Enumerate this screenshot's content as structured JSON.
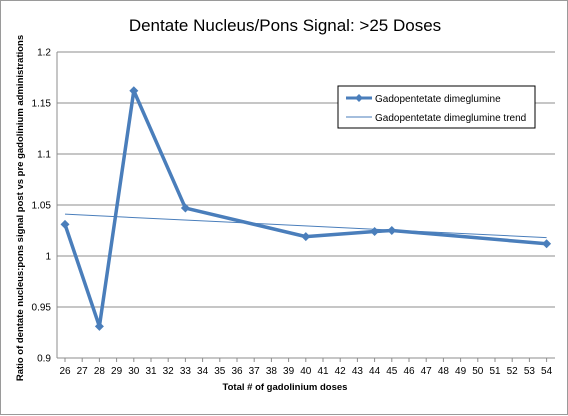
{
  "chart_data": {
    "type": "line",
    "title": "Dentate Nucleus/Pons Signal: >25 Doses",
    "xlabel": "Total #  of gadolinium doses",
    "ylabel": "Ratio of dentate nucleus:pons signal post vs pre gadolinium administrations",
    "x_ticks": [
      26,
      27,
      28,
      29,
      30,
      31,
      32,
      33,
      34,
      35,
      36,
      37,
      38,
      39,
      40,
      41,
      42,
      43,
      44,
      45,
      46,
      47,
      48,
      49,
      50,
      51,
      52,
      53,
      54
    ],
    "y_ticks": [
      0.9,
      0.95,
      1,
      1.05,
      1.1,
      1.15,
      1.2
    ],
    "y_tick_labels": [
      "0.9",
      "0.95",
      "1",
      "1.05",
      "1.1",
      "1.15",
      "1.2"
    ],
    "ylim": [
      0.9,
      1.2
    ],
    "xlim": [
      26,
      54
    ],
    "grid": "horizontal",
    "legend_position": "top-right",
    "series": [
      {
        "name": "Gadopentetate dimeglumine",
        "color": "#4a7ebb",
        "marker": "diamond",
        "x": [
          26,
          28,
          30,
          33,
          40,
          44,
          45,
          54
        ],
        "y": [
          1.031,
          0.931,
          1.162,
          1.047,
          1.019,
          1.024,
          1.025,
          1.012
        ]
      },
      {
        "name": "Gadopentetate dimeglumine trend",
        "color": "#4a7ebb",
        "kind": "trendline",
        "x": [
          26,
          54
        ],
        "y": [
          1.041,
          1.018
        ]
      }
    ]
  }
}
